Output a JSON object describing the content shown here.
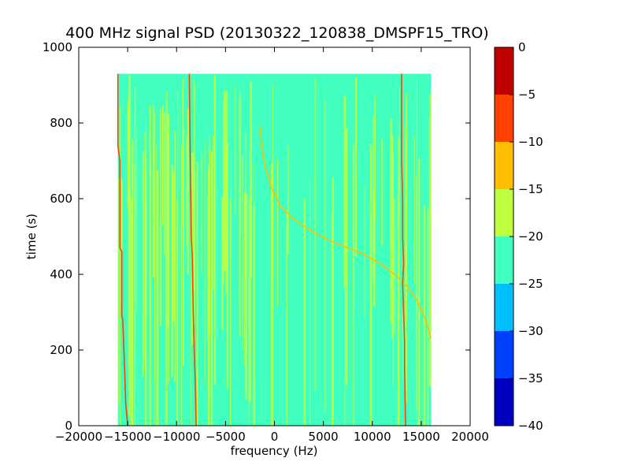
{
  "chart_data": {
    "type": "heatmap",
    "title": "400 MHz signal PSD (20130322_120838_DMSPF15_TRO)",
    "xlabel": "frequency (Hz)",
    "ylabel": "time (s)",
    "xlim": [
      -20000,
      20000
    ],
    "ylim": [
      0,
      1000
    ],
    "x_ticks": [
      -20000,
      -15000,
      -10000,
      -5000,
      0,
      5000,
      10000,
      15000,
      20000
    ],
    "x_tick_labels": [
      "−20000",
      "−15000",
      "−10000",
      "−5000",
      "0",
      "5000",
      "10000",
      "15000",
      "20000"
    ],
    "y_ticks": [
      0,
      200,
      400,
      600,
      800,
      1000
    ],
    "y_tick_labels": [
      "0",
      "200",
      "400",
      "600",
      "800",
      "1000"
    ],
    "data_extent": {
      "frequency_range_hz": [
        -16000,
        16000
      ],
      "time_range_s": [
        0,
        930
      ]
    },
    "background_level_db": -22,
    "colorbar": {
      "levels": [
        -40,
        -35,
        -30,
        -25,
        -20,
        -15,
        -10,
        -5,
        0
      ],
      "tick_labels": [
        "−40",
        "−35",
        "−30",
        "−25",
        "−20",
        "−15",
        "−10",
        "−5",
        "0"
      ],
      "colors": [
        "#0000bf",
        "#0040ff",
        "#00bfff",
        "#40ffbf",
        "#bfff40",
        "#ffbf00",
        "#ff4000",
        "#bf0000"
      ]
    },
    "features": [
      {
        "name": "doppler-sweep",
        "level_db": -12,
        "points": [
          [
            -1500,
            790
          ],
          [
            -1300,
            740
          ],
          [
            -900,
            680
          ],
          [
            -300,
            630
          ],
          [
            600,
            580
          ],
          [
            2000,
            545
          ],
          [
            4000,
            510
          ],
          [
            6500,
            480
          ],
          [
            9000,
            455
          ],
          [
            11000,
            425
          ],
          [
            12500,
            395
          ],
          [
            13500,
            370
          ],
          [
            14500,
            335
          ],
          [
            15300,
            290
          ],
          [
            15800,
            250
          ],
          [
            16000,
            230
          ]
        ]
      },
      {
        "name": "carrier-line-1",
        "level_db": -8,
        "points": [
          [
            -16000,
            930
          ],
          [
            -16000,
            740
          ],
          [
            -15800,
            700
          ],
          [
            -15800,
            470
          ],
          [
            -15600,
            460
          ],
          [
            -15600,
            290
          ],
          [
            -15500,
            280
          ],
          [
            -15300,
            140
          ],
          [
            -15200,
            60
          ],
          [
            -15000,
            0
          ]
        ]
      },
      {
        "name": "carrier-line-2",
        "level_db": -8,
        "points": [
          [
            -8700,
            930
          ],
          [
            -8600,
            700
          ],
          [
            -8500,
            500
          ],
          [
            -8400,
            450
          ],
          [
            -8300,
            300
          ],
          [
            -8200,
            200
          ],
          [
            -8100,
            120
          ],
          [
            -8000,
            0
          ]
        ]
      },
      {
        "name": "carrier-line-3",
        "level_db": -8,
        "points": [
          [
            13000,
            930
          ],
          [
            13000,
            700
          ],
          [
            13100,
            600
          ],
          [
            13100,
            500
          ],
          [
            13200,
            430
          ],
          [
            13100,
            375
          ],
          [
            13200,
            300
          ],
          [
            13300,
            220
          ],
          [
            13300,
            150
          ],
          [
            13400,
            0
          ]
        ]
      }
    ]
  }
}
